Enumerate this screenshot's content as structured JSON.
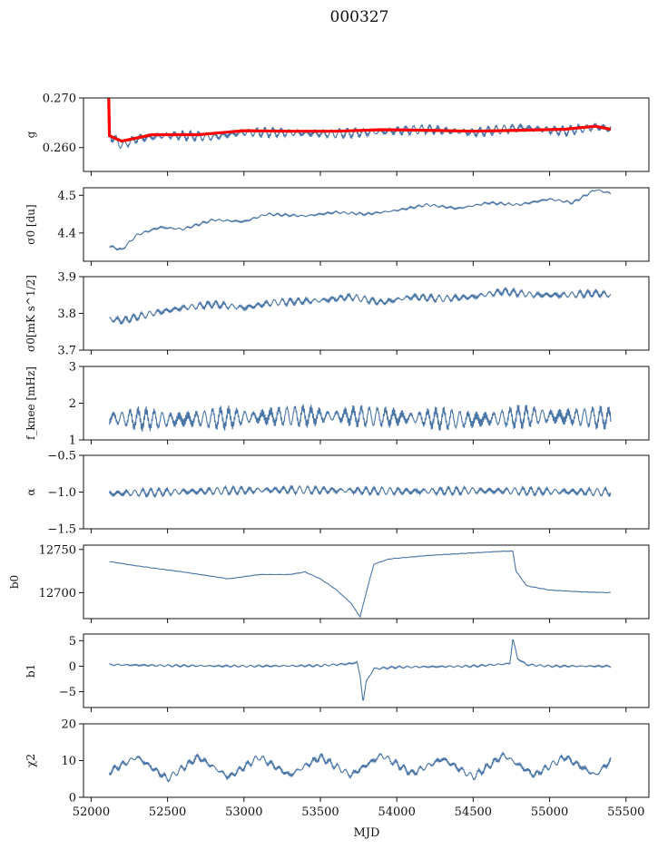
{
  "figure": {
    "title": "000327",
    "xlabel": "MJD",
    "colors": {
      "series": "#4a76a8",
      "fit": "#ff0000",
      "axes": "#111111"
    }
  },
  "chart_data": [
    {
      "type": "line",
      "ylabel": "g",
      "xlim": [
        51950,
        55650
      ],
      "ylim": [
        0.2552,
        0.27
      ],
      "yticks": [
        0.26,
        0.27
      ],
      "ytick_labels": [
        "0.260",
        "0.270"
      ],
      "series": [
        {
          "values": [
            [
              52120,
              0.2625
            ],
            [
              52200,
              0.2605
            ],
            [
              52300,
              0.2618
            ],
            [
              52500,
              0.2625
            ],
            [
              52800,
              0.2622
            ],
            [
              53000,
              0.2631
            ],
            [
              53300,
              0.263
            ],
            [
              53600,
              0.2628
            ],
            [
              53900,
              0.2632
            ],
            [
              54200,
              0.2637
            ],
            [
              54500,
              0.263
            ],
            [
              54800,
              0.264
            ],
            [
              55100,
              0.2633
            ],
            [
              55300,
              0.2642
            ],
            [
              55400,
              0.2638
            ]
          ]
        },
        {
          "values": [
            [
              52115,
              0.27
            ],
            [
              52120,
              0.2624
            ],
            [
              52200,
              0.2613
            ],
            [
              52400,
              0.2626
            ],
            [
              52700,
              0.2626
            ],
            [
              53000,
              0.2634
            ],
            [
              53300,
              0.2633
            ],
            [
              53600,
              0.2633
            ],
            [
              53900,
              0.2636
            ],
            [
              54200,
              0.2635
            ],
            [
              54500,
              0.2633
            ],
            [
              54800,
              0.2635
            ],
            [
              55100,
              0.2637
            ],
            [
              55300,
              0.2643
            ],
            [
              55400,
              0.2637
            ]
          ]
        }
      ]
    },
    {
      "type": "line",
      "ylabel": "σ0 [du]",
      "xlim": [
        51950,
        55650
      ],
      "ylim": [
        4.325,
        4.52
      ],
      "yticks": [
        4.4,
        4.5
      ],
      "ytick_labels": [
        "4.4",
        "4.5"
      ],
      "series": [
        {
          "values": [
            [
              52120,
              4.365
            ],
            [
              52200,
              4.355
            ],
            [
              52300,
              4.395
            ],
            [
              52450,
              4.415
            ],
            [
              52600,
              4.41
            ],
            [
              52800,
              4.435
            ],
            [
              53000,
              4.43
            ],
            [
              53150,
              4.45
            ],
            [
              53400,
              4.445
            ],
            [
              53600,
              4.455
            ],
            [
              53800,
              4.45
            ],
            [
              54000,
              4.46
            ],
            [
              54200,
              4.475
            ],
            [
              54400,
              4.465
            ],
            [
              54600,
              4.48
            ],
            [
              54800,
              4.475
            ],
            [
              55000,
              4.49
            ],
            [
              55150,
              4.48
            ],
            [
              55300,
              4.515
            ],
            [
              55400,
              4.505
            ]
          ]
        }
      ]
    },
    {
      "type": "line",
      "ylabel": "σ0[mK s^1/2]",
      "xlim": [
        51950,
        55650
      ],
      "ylim": [
        3.7,
        3.9
      ],
      "yticks": [
        3.7,
        3.8,
        3.9
      ],
      "ytick_labels": [
        "3.7",
        "3.8",
        "3.9"
      ],
      "series": [
        {
          "values": [
            [
              52120,
              3.785
            ],
            [
              52200,
              3.78
            ],
            [
              52400,
              3.8
            ],
            [
              52600,
              3.815
            ],
            [
              52800,
              3.825
            ],
            [
              53000,
              3.815
            ],
            [
              53200,
              3.83
            ],
            [
              53500,
              3.835
            ],
            [
              53700,
              3.845
            ],
            [
              53900,
              3.83
            ],
            [
              54100,
              3.845
            ],
            [
              54300,
              3.84
            ],
            [
              54500,
              3.845
            ],
            [
              54700,
              3.86
            ],
            [
              54900,
              3.85
            ],
            [
              55100,
              3.85
            ],
            [
              55300,
              3.855
            ],
            [
              55400,
              3.85
            ]
          ]
        }
      ]
    },
    {
      "type": "line",
      "ylabel": "f_knee [mHz]",
      "xlim": [
        51950,
        55650
      ],
      "ylim": [
        1,
        3
      ],
      "yticks": [
        1,
        2,
        3
      ],
      "ytick_labels": [
        "1",
        "2",
        "3"
      ],
      "series": [
        {
          "values": [
            [
              52120,
              1.6
            ],
            [
              52500,
              1.55
            ],
            [
              52900,
              1.6
            ],
            [
              53300,
              1.65
            ],
            [
              53700,
              1.65
            ],
            [
              54100,
              1.6
            ],
            [
              54500,
              1.55
            ],
            [
              54900,
              1.65
            ],
            [
              55400,
              1.6
            ]
          ]
        }
      ]
    },
    {
      "type": "line",
      "ylabel": "α",
      "xlim": [
        51950,
        55650
      ],
      "ylim": [
        -1.5,
        -0.5
      ],
      "yticks": [
        -1.5,
        -1.0,
        -0.5
      ],
      "ytick_labels": [
        "−1.5",
        "−1.0",
        "−0.5"
      ],
      "series": [
        {
          "values": [
            [
              52120,
              -1.02
            ],
            [
              52500,
              -1.0
            ],
            [
              52900,
              -0.98
            ],
            [
              53300,
              -0.97
            ],
            [
              53700,
              -0.98
            ],
            [
              54100,
              -0.99
            ],
            [
              54500,
              -0.98
            ],
            [
              54900,
              -0.99
            ],
            [
              55400,
              -1.0
            ]
          ]
        }
      ]
    },
    {
      "type": "line",
      "ylabel": "b0",
      "xlim": [
        51950,
        55650
      ],
      "ylim": [
        12670,
        12755
      ],
      "yticks": [
        12700,
        12750
      ],
      "ytick_labels": [
        "12700",
        "12750"
      ],
      "series": [
        {
          "values": [
            [
              52120,
              12736
            ],
            [
              52300,
              12731
            ],
            [
              52600,
              12724
            ],
            [
              52900,
              12716
            ],
            [
              53100,
              12721
            ],
            [
              53300,
              12721
            ],
            [
              53400,
              12724
            ],
            [
              53500,
              12716
            ],
            [
              53600,
              12704
            ],
            [
              53700,
              12688
            ],
            [
              53760,
              12672
            ],
            [
              53800,
              12700
            ],
            [
              53850,
              12733
            ],
            [
              53950,
              12739
            ],
            [
              54200,
              12743
            ],
            [
              54500,
              12746
            ],
            [
              54700,
              12748
            ],
            [
              54760,
              12748
            ],
            [
              54780,
              12725
            ],
            [
              54850,
              12708
            ],
            [
              55000,
              12703
            ],
            [
              55200,
              12701
            ],
            [
              55400,
              12700
            ]
          ]
        }
      ]
    },
    {
      "type": "line",
      "ylabel": "b1",
      "xlim": [
        51950,
        55650
      ],
      "ylim": [
        -8.1,
        6.3
      ],
      "yticks": [
        -5,
        0,
        5
      ],
      "ytick_labels": [
        "−5",
        "0",
        "5"
      ],
      "series": [
        {
          "values": [
            [
              52120,
              0.3
            ],
            [
              52500,
              0.1
            ],
            [
              53000,
              0.0
            ],
            [
              53500,
              0.1
            ],
            [
              53700,
              0.5
            ],
            [
              53740,
              0.8
            ],
            [
              53760,
              -2.0
            ],
            [
              53780,
              -7.0
            ],
            [
              53800,
              -3.0
            ],
            [
              53850,
              -0.5
            ],
            [
              54000,
              -0.2
            ],
            [
              54500,
              0.0
            ],
            [
              54740,
              0.5
            ],
            [
              54760,
              5.5
            ],
            [
              54790,
              1.5
            ],
            [
              54850,
              0.3
            ],
            [
              55000,
              0.0
            ],
            [
              55400,
              0.0
            ]
          ]
        }
      ]
    },
    {
      "type": "line",
      "ylabel": "χ2",
      "xlim": [
        51950,
        55650
      ],
      "ylim": [
        0,
        20
      ],
      "yticks": [
        0,
        10,
        20
      ],
      "ytick_labels": [
        "0",
        "10",
        "20"
      ],
      "xticks": [
        52000,
        52500,
        53000,
        53500,
        54000,
        54500,
        55000,
        55500
      ],
      "xtick_labels": [
        "52000",
        "52500",
        "53000",
        "53500",
        "54000",
        "54500",
        "55000",
        "55500"
      ],
      "series": [
        {
          "values": [
            [
              52120,
              7.0
            ],
            [
              52300,
              11.0
            ],
            [
              52500,
              5.0
            ],
            [
              52700,
              11.0
            ],
            [
              52900,
              5.5
            ],
            [
              53100,
              11.0
            ],
            [
              53300,
              6.0
            ],
            [
              53500,
              11.0
            ],
            [
              53700,
              6.0
            ],
            [
              53900,
              11.5
            ],
            [
              54100,
              6.5
            ],
            [
              54300,
              10.5
            ],
            [
              54500,
              5.5
            ],
            [
              54700,
              11.5
            ],
            [
              54900,
              6.0
            ],
            [
              55100,
              11.0
            ],
            [
              55300,
              6.0
            ],
            [
              55400,
              10.0
            ]
          ]
        }
      ]
    }
  ]
}
